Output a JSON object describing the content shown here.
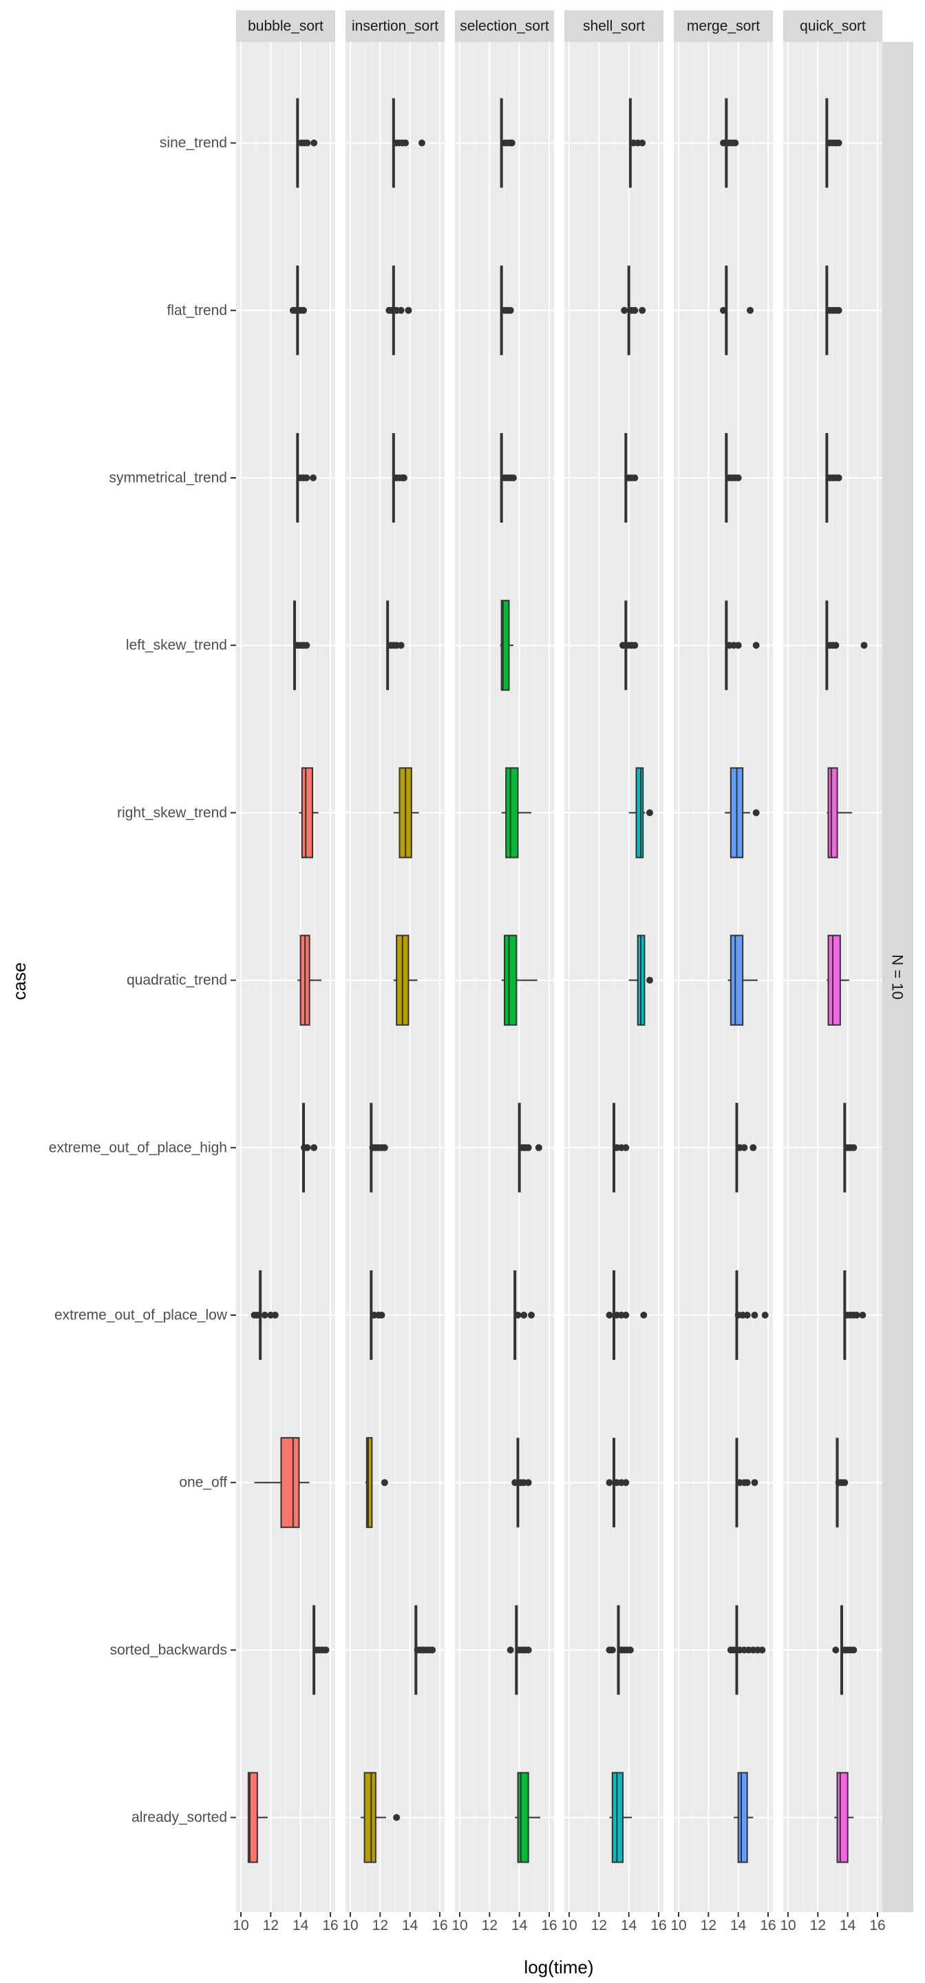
{
  "chart_data": {
    "type": "boxplot",
    "xlabel": "log(time)",
    "ylabel": "case",
    "facet_row_label": "N = 10",
    "xlim": [
      10,
      16
    ],
    "x_ticks": [
      "10",
      "12",
      "14",
      "16"
    ],
    "x_tick_values": [
      10,
      12,
      14,
      16
    ],
    "grid": true,
    "legend": "none",
    "panels": [
      "bubble_sort",
      "insertion_sort",
      "selection_sort",
      "shell_sort",
      "merge_sort",
      "quick_sort"
    ],
    "panel_colors": [
      "#F8766D",
      "#B79F00",
      "#00BA38",
      "#00BFC4",
      "#619CFF",
      "#F564E3"
    ],
    "categories": [
      "sine_trend",
      "flat_trend",
      "symmetrical_trend",
      "left_skew_trend",
      "right_skew_trend",
      "quadratic_trend",
      "extreme_out_of_place_high",
      "extreme_out_of_place_low",
      "one_off",
      "sorted_backwards",
      "already_sorted"
    ],
    "boxes": [
      [
        {
          "min": 13.8,
          "q1": 13.8,
          "med": 13.8,
          "q3": 13.8,
          "max": 13.8,
          "out": [
            14.05,
            14.25,
            14.45,
            14.9
          ]
        },
        {
          "min": 13.8,
          "q1": 13.8,
          "med": 13.8,
          "q3": 13.8,
          "max": 13.8,
          "out": [
            13.5,
            13.65,
            14.0,
            14.2
          ]
        },
        {
          "min": 13.8,
          "q1": 13.8,
          "med": 13.8,
          "q3": 13.8,
          "max": 13.8,
          "out": [
            14.0,
            14.2,
            14.4,
            14.85
          ]
        },
        {
          "min": 13.6,
          "q1": 13.6,
          "med": 13.6,
          "q3": 13.6,
          "max": 13.6,
          "out": [
            13.8,
            14.0,
            14.2,
            14.4
          ]
        },
        {
          "min": 13.9,
          "q1": 14.1,
          "med": 14.35,
          "q3": 14.8,
          "max": 15.2,
          "out": []
        },
        {
          "min": 13.8,
          "q1": 14.0,
          "med": 14.3,
          "q3": 14.6,
          "max": 15.4,
          "out": []
        },
        {
          "min": 14.2,
          "q1": 14.2,
          "med": 14.2,
          "q3": 14.2,
          "max": 14.2,
          "out": [
            14.25,
            14.45,
            14.9
          ]
        },
        {
          "min": 11.3,
          "q1": 11.3,
          "med": 11.3,
          "q3": 11.3,
          "max": 11.3,
          "out": [
            10.9,
            11.1,
            11.6,
            12.0,
            12.3
          ]
        },
        {
          "min": 10.9,
          "q1": 12.7,
          "med": 13.5,
          "q3": 13.9,
          "max": 14.6,
          "out": []
        },
        {
          "min": 14.9,
          "q1": 14.9,
          "med": 14.9,
          "q3": 14.9,
          "max": 14.9,
          "out": [
            15.1,
            15.3,
            15.5,
            15.7
          ]
        },
        {
          "min": 10.5,
          "q1": 10.5,
          "med": 10.6,
          "q3": 11.1,
          "max": 11.8,
          "out": []
        }
      ],
      [
        {
          "min": 12.9,
          "q1": 12.9,
          "med": 12.9,
          "q3": 12.9,
          "max": 12.9,
          "out": [
            13.1,
            13.3,
            13.5,
            13.7,
            14.8
          ]
        },
        {
          "min": 12.9,
          "q1": 12.9,
          "med": 12.9,
          "q3": 12.9,
          "max": 12.9,
          "out": [
            12.6,
            12.8,
            13.1,
            13.4,
            13.9
          ]
        },
        {
          "min": 12.9,
          "q1": 12.9,
          "med": 12.9,
          "q3": 12.9,
          "max": 12.9,
          "out": [
            13.1,
            13.3,
            13.5,
            13.6
          ]
        },
        {
          "min": 12.5,
          "q1": 12.5,
          "med": 12.5,
          "q3": 12.5,
          "max": 12.5,
          "out": [
            12.7,
            12.9,
            13.1,
            13.4
          ]
        },
        {
          "min": 12.9,
          "q1": 13.3,
          "med": 13.7,
          "q3": 14.1,
          "max": 14.6,
          "out": []
        },
        {
          "min": 12.9,
          "q1": 13.1,
          "med": 13.5,
          "q3": 13.9,
          "max": 14.5,
          "out": []
        },
        {
          "min": 11.4,
          "q1": 11.4,
          "med": 11.4,
          "q3": 11.4,
          "max": 11.4,
          "out": [
            11.5,
            11.7,
            11.9,
            12.1,
            12.3
          ]
        },
        {
          "min": 11.4,
          "q1": 11.4,
          "med": 11.4,
          "q3": 11.4,
          "max": 11.4,
          "out": [
            11.6,
            11.9,
            12.1
          ]
        },
        {
          "min": 11.0,
          "q1": 11.1,
          "med": 11.2,
          "q3": 11.45,
          "max": 11.5,
          "out": [
            12.3
          ]
        },
        {
          "min": 14.4,
          "q1": 14.4,
          "med": 14.4,
          "q3": 14.4,
          "max": 14.4,
          "out": [
            14.5,
            14.7,
            14.9,
            15.1,
            15.3,
            15.5
          ]
        },
        {
          "min": 10.7,
          "q1": 10.95,
          "med": 11.4,
          "q3": 11.7,
          "max": 12.4,
          "out": [
            13.1
          ]
        }
      ],
      [
        {
          "min": 12.8,
          "q1": 12.8,
          "med": 12.8,
          "q3": 12.8,
          "max": 12.8,
          "out": [
            13.0,
            13.2,
            13.4,
            13.5
          ]
        },
        {
          "min": 12.8,
          "q1": 12.8,
          "med": 12.8,
          "q3": 12.8,
          "max": 12.8,
          "out": [
            13.0,
            13.2,
            13.4
          ]
        },
        {
          "min": 12.8,
          "q1": 12.8,
          "med": 12.8,
          "q3": 12.8,
          "max": 12.8,
          "out": [
            13.0,
            13.2,
            13.4,
            13.6
          ]
        },
        {
          "min": 12.7,
          "q1": 12.8,
          "med": 12.9,
          "q3": 13.3,
          "max": 13.6,
          "out": []
        },
        {
          "min": 12.8,
          "q1": 13.1,
          "med": 13.4,
          "q3": 13.9,
          "max": 14.8,
          "out": []
        },
        {
          "min": 12.8,
          "q1": 13.0,
          "med": 13.3,
          "q3": 13.8,
          "max": 15.2,
          "out": []
        },
        {
          "min": 14.0,
          "q1": 14.0,
          "med": 14.0,
          "q3": 14.0,
          "max": 14.0,
          "out": [
            14.2,
            14.4,
            14.6,
            15.3
          ]
        },
        {
          "min": 13.7,
          "q1": 13.7,
          "med": 13.7,
          "q3": 13.7,
          "max": 13.7,
          "out": [
            13.9,
            14.3,
            14.8
          ]
        },
        {
          "min": 13.9,
          "q1": 13.9,
          "med": 13.9,
          "q3": 13.9,
          "max": 13.9,
          "out": [
            13.7,
            14.1,
            14.3,
            14.6
          ]
        },
        {
          "min": 13.8,
          "q1": 13.8,
          "med": 13.8,
          "q3": 13.8,
          "max": 13.8,
          "out": [
            13.4,
            14.0,
            14.2,
            14.4,
            14.6
          ]
        },
        {
          "min": 13.7,
          "q1": 13.9,
          "med": 14.1,
          "q3": 14.6,
          "max": 15.4,
          "out": []
        }
      ],
      [
        {
          "min": 14.1,
          "q1": 14.1,
          "med": 14.1,
          "q3": 14.1,
          "max": 14.1,
          "out": [
            14.3,
            14.6,
            14.9
          ]
        },
        {
          "min": 14.0,
          "q1": 14.0,
          "med": 14.0,
          "q3": 14.0,
          "max": 14.0,
          "out": [
            13.7,
            14.2,
            14.4,
            14.9
          ]
        },
        {
          "min": 13.8,
          "q1": 13.8,
          "med": 13.8,
          "q3": 13.8,
          "max": 13.8,
          "out": [
            14.0,
            14.2,
            14.4
          ]
        },
        {
          "min": 13.8,
          "q1": 13.8,
          "med": 13.8,
          "q3": 13.8,
          "max": 13.8,
          "out": [
            13.6,
            14.0,
            14.2,
            14.4
          ]
        },
        {
          "min": 14.0,
          "q1": 14.5,
          "med": 14.8,
          "q3": 14.95,
          "max": 15.1,
          "out": [
            15.4
          ]
        },
        {
          "min": 14.0,
          "q1": 14.6,
          "med": 14.8,
          "q3": 15.05,
          "max": 15.1,
          "out": [
            15.4
          ]
        },
        {
          "min": 13.0,
          "q1": 13.0,
          "med": 13.0,
          "q3": 13.0,
          "max": 13.0,
          "out": [
            13.2,
            13.5,
            13.8
          ]
        },
        {
          "min": 13.0,
          "q1": 13.0,
          "med": 13.0,
          "q3": 13.0,
          "max": 13.0,
          "out": [
            12.7,
            13.2,
            13.5,
            13.8,
            15.0
          ]
        },
        {
          "min": 13.0,
          "q1": 13.0,
          "med": 13.0,
          "q3": 13.0,
          "max": 13.0,
          "out": [
            12.7,
            13.2,
            13.5,
            13.8
          ]
        },
        {
          "min": 13.3,
          "q1": 13.3,
          "med": 13.3,
          "q3": 13.3,
          "max": 13.3,
          "out": [
            12.7,
            12.9,
            13.5,
            13.7,
            13.9,
            14.1
          ]
        },
        {
          "min": 12.7,
          "q1": 12.9,
          "med": 13.2,
          "q3": 13.6,
          "max": 14.2,
          "out": []
        }
      ],
      [
        {
          "min": 13.2,
          "q1": 13.2,
          "med": 13.2,
          "q3": 13.2,
          "max": 13.2,
          "out": [
            13.0,
            13.4,
            13.6,
            13.8
          ]
        },
        {
          "min": 13.2,
          "q1": 13.2,
          "med": 13.2,
          "q3": 13.2,
          "max": 13.2,
          "out": [
            13.0,
            14.8
          ]
        },
        {
          "min": 13.2,
          "q1": 13.2,
          "med": 13.2,
          "q3": 13.2,
          "max": 13.2,
          "out": [
            13.4,
            13.6,
            13.8,
            14.0
          ]
        },
        {
          "min": 13.2,
          "q1": 13.2,
          "med": 13.2,
          "q3": 13.2,
          "max": 13.2,
          "out": [
            13.4,
            13.7,
            14.0,
            15.2
          ]
        },
        {
          "min": 13.1,
          "q1": 13.5,
          "med": 13.9,
          "q3": 14.3,
          "max": 14.8,
          "out": [
            15.2
          ]
        },
        {
          "min": 13.3,
          "q1": 13.5,
          "med": 13.8,
          "q3": 14.3,
          "max": 15.3,
          "out": []
        },
        {
          "min": 13.9,
          "q1": 13.9,
          "med": 13.9,
          "q3": 13.9,
          "max": 13.9,
          "out": [
            14.1,
            14.4,
            15.0
          ]
        },
        {
          "min": 13.9,
          "q1": 13.9,
          "med": 13.9,
          "q3": 13.9,
          "max": 13.9,
          "out": [
            14.0,
            14.3,
            14.6,
            15.1,
            15.8
          ]
        },
        {
          "min": 13.9,
          "q1": 13.9,
          "med": 13.9,
          "q3": 13.9,
          "max": 13.9,
          "out": [
            14.1,
            14.4,
            14.6,
            15.1
          ]
        },
        {
          "min": 13.9,
          "q1": 13.9,
          "med": 13.9,
          "q3": 13.9,
          "max": 13.9,
          "out": [
            13.5,
            13.7,
            14.1,
            14.4,
            14.7,
            15.0,
            15.3,
            15.6
          ]
        },
        {
          "min": 13.7,
          "q1": 14.0,
          "med": 14.2,
          "q3": 14.6,
          "max": 15.0,
          "out": []
        }
      ],
      [
        {
          "min": 12.6,
          "q1": 12.6,
          "med": 12.6,
          "q3": 12.6,
          "max": 12.6,
          "out": [
            12.8,
            13.0,
            13.2,
            13.4
          ]
        },
        {
          "min": 12.6,
          "q1": 12.6,
          "med": 12.6,
          "q3": 12.6,
          "max": 12.6,
          "out": [
            12.8,
            13.0,
            13.2,
            13.4
          ]
        },
        {
          "min": 12.6,
          "q1": 12.6,
          "med": 12.6,
          "q3": 12.6,
          "max": 12.6,
          "out": [
            12.8,
            13.0,
            13.2,
            13.4
          ]
        },
        {
          "min": 12.6,
          "q1": 12.6,
          "med": 12.6,
          "q3": 12.6,
          "max": 12.6,
          "out": [
            12.8,
            13.0,
            13.2,
            15.1
          ]
        },
        {
          "min": 12.6,
          "q1": 12.7,
          "med": 12.9,
          "q3": 13.3,
          "max": 14.3,
          "out": []
        },
        {
          "min": 12.6,
          "q1": 12.7,
          "med": 13.0,
          "q3": 13.5,
          "max": 14.1,
          "out": []
        },
        {
          "min": 13.8,
          "q1": 13.8,
          "med": 13.8,
          "q3": 13.8,
          "max": 13.8,
          "out": [
            14.0,
            14.2,
            14.4
          ]
        },
        {
          "min": 13.8,
          "q1": 13.8,
          "med": 13.8,
          "q3": 13.8,
          "max": 13.8,
          "out": [
            14.0,
            14.2,
            14.4,
            14.6,
            15.0
          ]
        },
        {
          "min": 13.3,
          "q1": 13.3,
          "med": 13.3,
          "q3": 13.3,
          "max": 13.3,
          "out": [
            13.4,
            13.6,
            13.8
          ]
        },
        {
          "min": 13.6,
          "q1": 13.6,
          "med": 13.6,
          "q3": 13.6,
          "max": 13.6,
          "out": [
            13.2,
            13.8,
            14.0,
            14.2,
            14.4
          ]
        },
        {
          "min": 13.1,
          "q1": 13.3,
          "med": 13.5,
          "q3": 14.0,
          "max": 14.4,
          "out": []
        }
      ]
    ]
  }
}
